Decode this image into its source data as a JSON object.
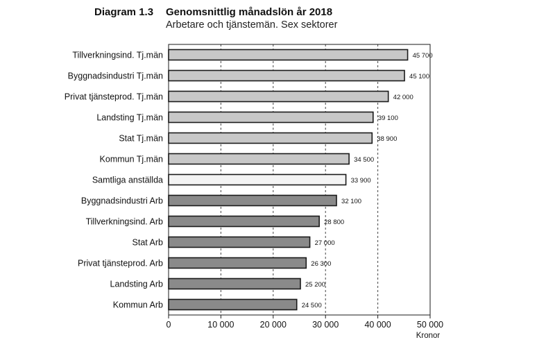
{
  "header": {
    "diagram_no": "Diagram 1.3",
    "title": "Genomsnittlig månadslön år 2018",
    "subtitle": "Arbetare och tjänstemän. Sex sektorer"
  },
  "chart_data": {
    "type": "bar",
    "orientation": "horizontal",
    "title": "Genomsnittlig månadslön år 2018",
    "subtitle": "Arbetare och tjänstemän. Sex sektorer",
    "xlabel": "Kronor",
    "ylabel": "",
    "xlim": [
      0,
      50000
    ],
    "xticks": [
      0,
      10000,
      20000,
      30000,
      40000,
      50000
    ],
    "xtick_labels": [
      "0",
      "10 000",
      "20 000",
      "30 000",
      "40 000",
      "50 000"
    ],
    "grid": "vertical dashed",
    "categories": [
      "Tillverkningsind. Tj.män",
      "Byggnadsindustri Tj.män",
      "Privat tjänsteprod. Tj.män",
      "Landsting Tj.män",
      "Stat Tj.män",
      "Kommun Tj.män",
      "Samtliga anställda",
      "Byggnadsindustri Arb",
      "Tillverkningsind. Arb",
      "Stat Arb",
      "Privat tjänsteprod. Arb",
      "Landsting Arb",
      "Kommun Arb"
    ],
    "values": [
      45700,
      45100,
      42000,
      39100,
      38900,
      34500,
      33900,
      32100,
      28800,
      27000,
      26300,
      25200,
      24500
    ],
    "value_labels": [
      "45 700",
      "45 100",
      "42 000",
      "39 100",
      "38 900",
      "34 500",
      "33 900",
      "32 100",
      "28 800",
      "27 000",
      "26 300",
      "25 200",
      "24 500"
    ],
    "groups": [
      "tjm",
      "tjm",
      "tjm",
      "tjm",
      "tjm",
      "tjm",
      "all",
      "arb",
      "arb",
      "arb",
      "arb",
      "arb",
      "arb"
    ],
    "colors": {
      "tjm": "#c8c8c8",
      "all": "#f4f4f4",
      "arb": "#8a8a8a",
      "border": "#1a1a1a",
      "grid": "#444444"
    }
  }
}
